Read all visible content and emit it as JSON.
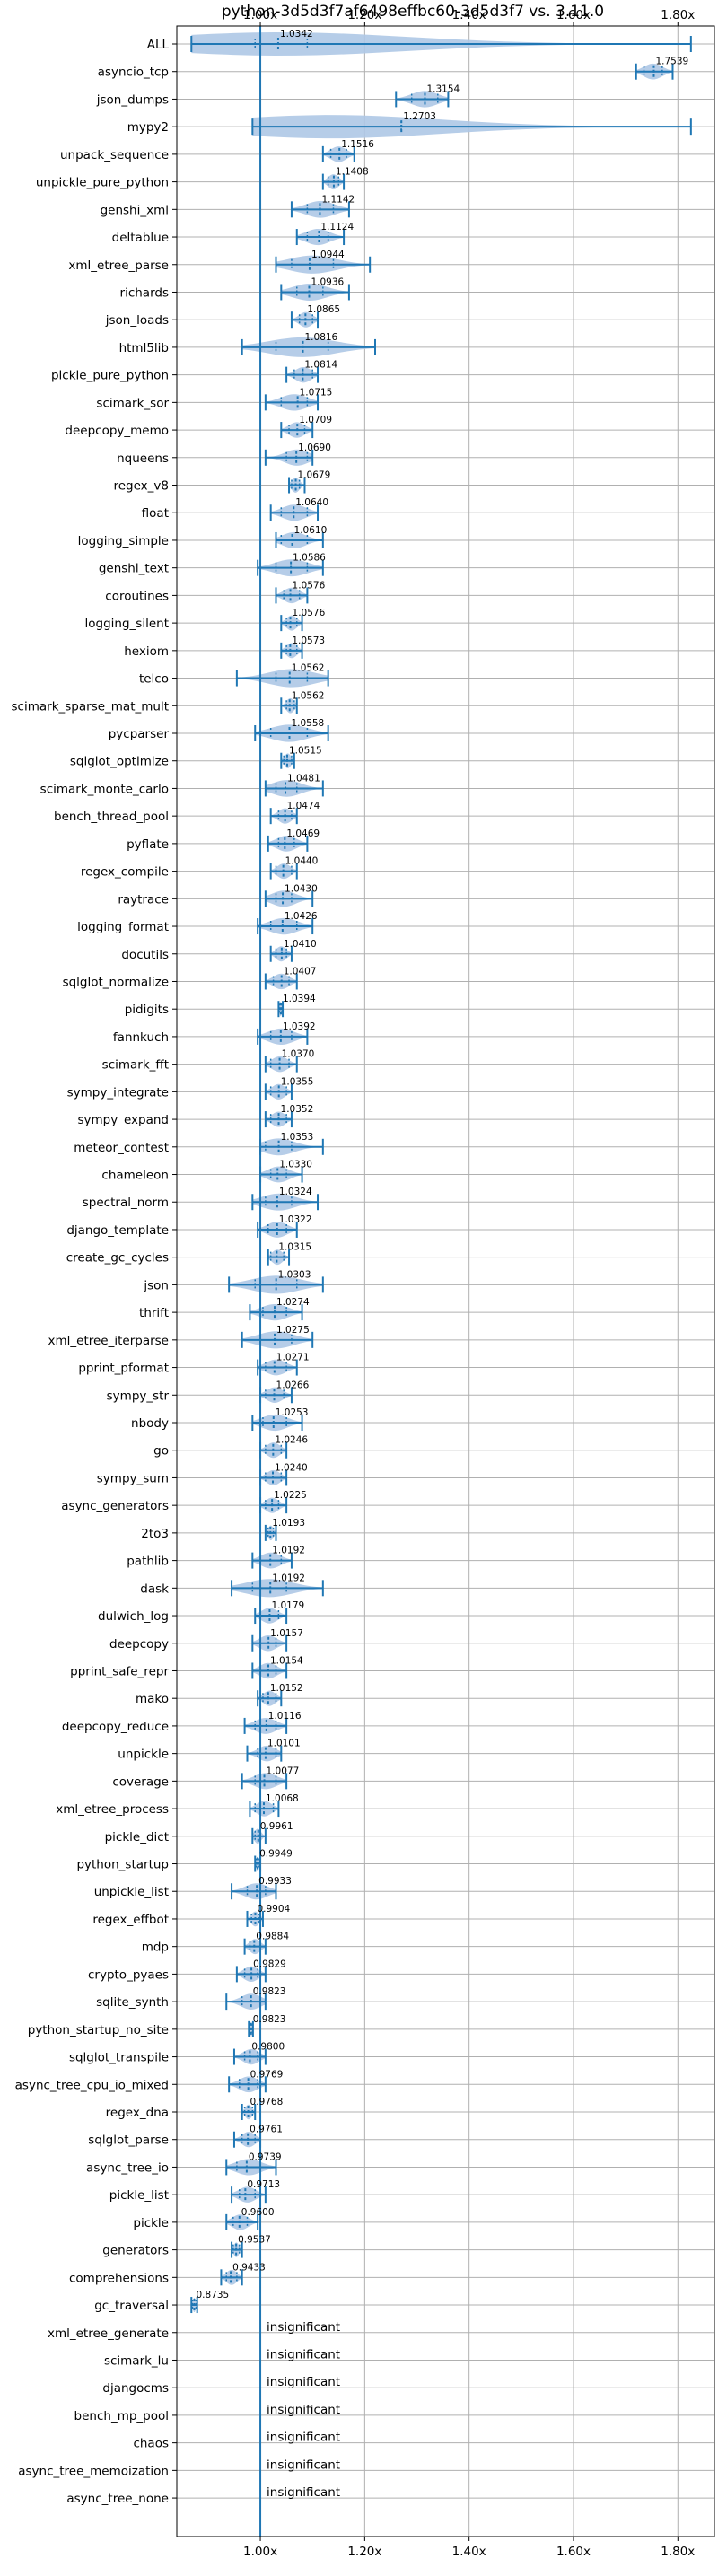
{
  "chart_data": {
    "type": "violin",
    "title": "python-3d5d3f7af6498effbc60-3d5d3f7 vs. 3.11.0",
    "xlabel": "",
    "ylabel": "",
    "xlim": [
      0.84,
      1.87
    ],
    "xticks": [
      1.0,
      1.2,
      1.4,
      1.6,
      1.8
    ],
    "xtick_labels": [
      "1.00x",
      "1.20x",
      "1.40x",
      "1.60x",
      "1.80x"
    ],
    "grid": true,
    "reference_line": 1.0,
    "insignificant_label": "insignificant",
    "colors": {
      "violin": "#aec8e6",
      "stroke": "#1f77b4",
      "grid": "#b0b0b0"
    },
    "benchmarks": [
      {
        "name": "ALL",
        "value": "1.0342",
        "center": 1.0342,
        "min": 0.868,
        "max": 1.825,
        "q1": 0.99,
        "q3": 1.09
      },
      {
        "name": "asyncio_tcp",
        "value": "1.7539",
        "center": 1.7539,
        "min": 1.72,
        "max": 1.79,
        "q1": 1.735,
        "q3": 1.77
      },
      {
        "name": "json_dumps",
        "value": "1.3154",
        "center": 1.3154,
        "min": 1.26,
        "max": 1.36,
        "q1": 1.29,
        "q3": 1.34
      },
      {
        "name": "mypy2",
        "value": "1.2703",
        "center": 1.2703,
        "min": 0.985,
        "max": 1.825,
        "q1": 1.0,
        "q3": 1.27
      },
      {
        "name": "unpack_sequence",
        "value": "1.1516",
        "center": 1.1516,
        "min": 1.12,
        "max": 1.18,
        "q1": 1.135,
        "q3": 1.165
      },
      {
        "name": "unpickle_pure_python",
        "value": "1.1408",
        "center": 1.1408,
        "min": 1.12,
        "max": 1.16,
        "q1": 1.13,
        "q3": 1.15
      },
      {
        "name": "genshi_xml",
        "value": "1.1142",
        "center": 1.1142,
        "min": 1.06,
        "max": 1.17,
        "q1": 1.09,
        "q3": 1.14
      },
      {
        "name": "deltablue",
        "value": "1.1124",
        "center": 1.1124,
        "min": 1.07,
        "max": 1.16,
        "q1": 1.09,
        "q3": 1.13
      },
      {
        "name": "xml_etree_parse",
        "value": "1.0944",
        "center": 1.0944,
        "min": 1.03,
        "max": 1.21,
        "q1": 1.06,
        "q3": 1.14
      },
      {
        "name": "richards",
        "value": "1.0936",
        "center": 1.0936,
        "min": 1.04,
        "max": 1.17,
        "q1": 1.07,
        "q3": 1.12
      },
      {
        "name": "json_loads",
        "value": "1.0865",
        "center": 1.0865,
        "min": 1.06,
        "max": 1.11,
        "q1": 1.075,
        "q3": 1.1
      },
      {
        "name": "html5lib",
        "value": "1.0816",
        "center": 1.0816,
        "min": 0.965,
        "max": 1.22,
        "q1": 1.03,
        "q3": 1.13
      },
      {
        "name": "pickle_pure_python",
        "value": "1.0814",
        "center": 1.0814,
        "min": 1.05,
        "max": 1.11,
        "q1": 1.065,
        "q3": 1.1
      },
      {
        "name": "scimark_sor",
        "value": "1.0715",
        "center": 1.0715,
        "min": 1.01,
        "max": 1.11,
        "q1": 1.04,
        "q3": 1.09
      },
      {
        "name": "deepcopy_memo",
        "value": "1.0709",
        "center": 1.0709,
        "min": 1.04,
        "max": 1.1,
        "q1": 1.055,
        "q3": 1.085
      },
      {
        "name": "nqueens",
        "value": "1.0690",
        "center": 1.069,
        "min": 1.01,
        "max": 1.1,
        "q1": 1.05,
        "q3": 1.09
      },
      {
        "name": "regex_v8",
        "value": "1.0679",
        "center": 1.0679,
        "min": 1.055,
        "max": 1.085,
        "q1": 1.06,
        "q3": 1.075
      },
      {
        "name": "float",
        "value": "1.0640",
        "center": 1.064,
        "min": 1.02,
        "max": 1.11,
        "q1": 1.04,
        "q3": 1.09
      },
      {
        "name": "logging_simple",
        "value": "1.0610",
        "center": 1.061,
        "min": 1.03,
        "max": 1.12,
        "q1": 1.04,
        "q3": 1.09
      },
      {
        "name": "genshi_text",
        "value": "1.0586",
        "center": 1.0586,
        "min": 0.995,
        "max": 1.12,
        "q1": 1.03,
        "q3": 1.09
      },
      {
        "name": "coroutines",
        "value": "1.0576",
        "center": 1.0576,
        "min": 1.03,
        "max": 1.09,
        "q1": 1.045,
        "q3": 1.075
      },
      {
        "name": "logging_silent",
        "value": "1.0576",
        "center": 1.0576,
        "min": 1.04,
        "max": 1.08,
        "q1": 1.05,
        "q3": 1.07
      },
      {
        "name": "hexiom",
        "value": "1.0573",
        "center": 1.0573,
        "min": 1.04,
        "max": 1.08,
        "q1": 1.05,
        "q3": 1.07
      },
      {
        "name": "telco",
        "value": "1.0562",
        "center": 1.0562,
        "min": 0.955,
        "max": 1.13,
        "q1": 1.03,
        "q3": 1.09
      },
      {
        "name": "scimark_sparse_mat_mult",
        "value": "1.0562",
        "center": 1.0562,
        "min": 1.04,
        "max": 1.07,
        "q1": 1.05,
        "q3": 1.065
      },
      {
        "name": "pycparser",
        "value": "1.0558",
        "center": 1.0558,
        "min": 0.99,
        "max": 1.13,
        "q1": 1.02,
        "q3": 1.09
      },
      {
        "name": "sqlglot_optimize",
        "value": "1.0515",
        "center": 1.0515,
        "min": 1.04,
        "max": 1.065,
        "q1": 1.045,
        "q3": 1.06
      },
      {
        "name": "scimark_monte_carlo",
        "value": "1.0481",
        "center": 1.0481,
        "min": 1.01,
        "max": 1.12,
        "q1": 1.03,
        "q3": 1.07
      },
      {
        "name": "bench_thread_pool",
        "value": "1.0474",
        "center": 1.0474,
        "min": 1.02,
        "max": 1.07,
        "q1": 1.035,
        "q3": 1.06
      },
      {
        "name": "pyflate",
        "value": "1.0469",
        "center": 1.0469,
        "min": 1.015,
        "max": 1.09,
        "q1": 1.035,
        "q3": 1.065
      },
      {
        "name": "regex_compile",
        "value": "1.0440",
        "center": 1.044,
        "min": 1.02,
        "max": 1.07,
        "q1": 1.03,
        "q3": 1.06
      },
      {
        "name": "raytrace",
        "value": "1.0430",
        "center": 1.043,
        "min": 1.01,
        "max": 1.1,
        "q1": 1.03,
        "q3": 1.06
      },
      {
        "name": "logging_format",
        "value": "1.0426",
        "center": 1.0426,
        "min": 0.995,
        "max": 1.1,
        "q1": 1.02,
        "q3": 1.07
      },
      {
        "name": "docutils",
        "value": "1.0410",
        "center": 1.041,
        "min": 1.02,
        "max": 1.06,
        "q1": 1.03,
        "q3": 1.05
      },
      {
        "name": "sqlglot_normalize",
        "value": "1.0407",
        "center": 1.0407,
        "min": 1.01,
        "max": 1.07,
        "q1": 1.025,
        "q3": 1.055
      },
      {
        "name": "pidigits",
        "value": "1.0394",
        "center": 1.0394,
        "min": 1.035,
        "max": 1.043,
        "q1": 1.037,
        "q3": 1.041
      },
      {
        "name": "fannkuch",
        "value": "1.0392",
        "center": 1.0392,
        "min": 0.995,
        "max": 1.09,
        "q1": 1.02,
        "q3": 1.06
      },
      {
        "name": "scimark_fft",
        "value": "1.0370",
        "center": 1.037,
        "min": 1.01,
        "max": 1.07,
        "q1": 1.02,
        "q3": 1.055
      },
      {
        "name": "sympy_integrate",
        "value": "1.0355",
        "center": 1.0355,
        "min": 1.01,
        "max": 1.06,
        "q1": 1.02,
        "q3": 1.05
      },
      {
        "name": "sympy_expand",
        "value": "1.0352",
        "center": 1.0352,
        "min": 1.01,
        "max": 1.06,
        "q1": 1.02,
        "q3": 1.05
      },
      {
        "name": "meteor_contest",
        "value": "1.0353",
        "center": 1.0353,
        "min": 1.0,
        "max": 1.12,
        "q1": 1.01,
        "q3": 1.06
      },
      {
        "name": "chameleon",
        "value": "1.0330",
        "center": 1.033,
        "min": 1.0,
        "max": 1.08,
        "q1": 1.02,
        "q3": 1.05
      },
      {
        "name": "spectral_norm",
        "value": "1.0324",
        "center": 1.0324,
        "min": 0.985,
        "max": 1.11,
        "q1": 1.01,
        "q3": 1.06
      },
      {
        "name": "django_template",
        "value": "1.0322",
        "center": 1.0322,
        "min": 0.995,
        "max": 1.07,
        "q1": 1.015,
        "q3": 1.05
      },
      {
        "name": "create_gc_cycles",
        "value": "1.0315",
        "center": 1.0315,
        "min": 1.015,
        "max": 1.055,
        "q1": 1.02,
        "q3": 1.045
      },
      {
        "name": "json",
        "value": "1.0303",
        "center": 1.0303,
        "min": 0.94,
        "max": 1.12,
        "q1": 0.99,
        "q3": 1.07
      },
      {
        "name": "thrift",
        "value": "1.0274",
        "center": 1.0274,
        "min": 0.98,
        "max": 1.08,
        "q1": 1.005,
        "q3": 1.05
      },
      {
        "name": "xml_etree_iterparse",
        "value": "1.0275",
        "center": 1.0275,
        "min": 0.965,
        "max": 1.1,
        "q1": 1.0,
        "q3": 1.06
      },
      {
        "name": "pprint_pformat",
        "value": "1.0271",
        "center": 1.0271,
        "min": 0.995,
        "max": 1.07,
        "q1": 1.01,
        "q3": 1.05
      },
      {
        "name": "sympy_str",
        "value": "1.0266",
        "center": 1.0266,
        "min": 1.0,
        "max": 1.06,
        "q1": 1.01,
        "q3": 1.045
      },
      {
        "name": "nbody",
        "value": "1.0253",
        "center": 1.0253,
        "min": 0.985,
        "max": 1.08,
        "q1": 1.005,
        "q3": 1.05
      },
      {
        "name": "go",
        "value": "1.0246",
        "center": 1.0246,
        "min": 1.0,
        "max": 1.05,
        "q1": 1.01,
        "q3": 1.04
      },
      {
        "name": "sympy_sum",
        "value": "1.0240",
        "center": 1.024,
        "min": 1.0,
        "max": 1.05,
        "q1": 1.01,
        "q3": 1.04
      },
      {
        "name": "async_generators",
        "value": "1.0225",
        "center": 1.0225,
        "min": 1.0,
        "max": 1.05,
        "q1": 1.01,
        "q3": 1.035
      },
      {
        "name": "2to3",
        "value": "1.0193",
        "center": 1.0193,
        "min": 1.01,
        "max": 1.03,
        "q1": 1.015,
        "q3": 1.025
      },
      {
        "name": "pathlib",
        "value": "1.0192",
        "center": 1.0192,
        "min": 0.985,
        "max": 1.06,
        "q1": 1.0,
        "q3": 1.04
      },
      {
        "name": "dask",
        "value": "1.0192",
        "center": 1.0192,
        "min": 0.945,
        "max": 1.12,
        "q1": 0.985,
        "q3": 1.05
      },
      {
        "name": "dulwich_log",
        "value": "1.0179",
        "center": 1.0179,
        "min": 0.99,
        "max": 1.05,
        "q1": 1.0,
        "q3": 1.035
      },
      {
        "name": "deepcopy",
        "value": "1.0157",
        "center": 1.0157,
        "min": 0.985,
        "max": 1.05,
        "q1": 1.0,
        "q3": 1.03
      },
      {
        "name": "pprint_safe_repr",
        "value": "1.0154",
        "center": 1.0154,
        "min": 0.985,
        "max": 1.05,
        "q1": 1.0,
        "q3": 1.03
      },
      {
        "name": "mako",
        "value": "1.0152",
        "center": 1.0152,
        "min": 0.995,
        "max": 1.04,
        "q1": 1.005,
        "q3": 1.03
      },
      {
        "name": "deepcopy_reduce",
        "value": "1.0116",
        "center": 1.0116,
        "min": 0.97,
        "max": 1.05,
        "q1": 0.99,
        "q3": 1.03
      },
      {
        "name": "unpickle",
        "value": "1.0101",
        "center": 1.0101,
        "min": 0.975,
        "max": 1.04,
        "q1": 0.995,
        "q3": 1.03
      },
      {
        "name": "coverage",
        "value": "1.0077",
        "center": 1.0077,
        "min": 0.965,
        "max": 1.05,
        "q1": 0.99,
        "q3": 1.03
      },
      {
        "name": "xml_etree_process",
        "value": "1.0068",
        "center": 1.0068,
        "min": 0.98,
        "max": 1.035,
        "q1": 0.99,
        "q3": 1.025
      },
      {
        "name": "pickle_dict",
        "value": "0.9961",
        "center": 0.9961,
        "min": 0.985,
        "max": 1.01,
        "q1": 0.99,
        "q3": 1.0
      },
      {
        "name": "python_startup",
        "value": "0.9949",
        "center": 0.9949,
        "min": 0.99,
        "max": 1.0,
        "q1": 0.992,
        "q3": 0.998
      },
      {
        "name": "unpickle_list",
        "value": "0.9933",
        "center": 0.9933,
        "min": 0.945,
        "max": 1.03,
        "q1": 0.975,
        "q3": 1.01
      },
      {
        "name": "regex_effbot",
        "value": "0.9904",
        "center": 0.9904,
        "min": 0.975,
        "max": 1.005,
        "q1": 0.983,
        "q3": 0.998
      },
      {
        "name": "mdp",
        "value": "0.9884",
        "center": 0.9884,
        "min": 0.97,
        "max": 1.01,
        "q1": 0.98,
        "q3": 1.0
      },
      {
        "name": "crypto_pyaes",
        "value": "0.9829",
        "center": 0.9829,
        "min": 0.955,
        "max": 1.01,
        "q1": 0.97,
        "q3": 0.995
      },
      {
        "name": "sqlite_synth",
        "value": "0.9823",
        "center": 0.9823,
        "min": 0.935,
        "max": 1.01,
        "q1": 0.965,
        "q3": 1.0
      },
      {
        "name": "python_startup_no_site",
        "value": "0.9823",
        "center": 0.9823,
        "min": 0.978,
        "max": 0.986,
        "q1": 0.98,
        "q3": 0.985
      },
      {
        "name": "sqlglot_transpile",
        "value": "0.9800",
        "center": 0.98,
        "min": 0.95,
        "max": 1.01,
        "q1": 0.97,
        "q3": 0.995
      },
      {
        "name": "async_tree_cpu_io_mixed",
        "value": "0.9769",
        "center": 0.9769,
        "min": 0.94,
        "max": 1.01,
        "q1": 0.96,
        "q3": 0.995
      },
      {
        "name": "regex_dna",
        "value": "0.9768",
        "center": 0.9768,
        "min": 0.965,
        "max": 0.99,
        "q1": 0.97,
        "q3": 0.985
      },
      {
        "name": "sqlglot_parse",
        "value": "0.9761",
        "center": 0.9761,
        "min": 0.95,
        "max": 1.0,
        "q1": 0.965,
        "q3": 0.99
      },
      {
        "name": "async_tree_io",
        "value": "0.9739",
        "center": 0.9739,
        "min": 0.935,
        "max": 1.03,
        "q1": 0.955,
        "q3": 1.0
      },
      {
        "name": "pickle_list",
        "value": "0.9713",
        "center": 0.9713,
        "min": 0.945,
        "max": 1.01,
        "q1": 0.96,
        "q3": 0.99
      },
      {
        "name": "pickle",
        "value": "0.9600",
        "center": 0.96,
        "min": 0.935,
        "max": 0.995,
        "q1": 0.948,
        "q3": 0.975
      },
      {
        "name": "generators",
        "value": "0.9537",
        "center": 0.9537,
        "min": 0.945,
        "max": 0.965,
        "q1": 0.948,
        "q3": 0.96
      },
      {
        "name": "comprehensions",
        "value": "0.9433",
        "center": 0.9433,
        "min": 0.925,
        "max": 0.965,
        "q1": 0.935,
        "q3": 0.955
      },
      {
        "name": "gc_traversal",
        "value": "0.8735",
        "center": 0.8735,
        "min": 0.868,
        "max": 0.879,
        "q1": 0.87,
        "q3": 0.877
      },
      {
        "name": "xml_etree_generate",
        "value": null
      },
      {
        "name": "scimark_lu",
        "value": null
      },
      {
        "name": "djangocms",
        "value": null
      },
      {
        "name": "bench_mp_pool",
        "value": null
      },
      {
        "name": "chaos",
        "value": null
      },
      {
        "name": "async_tree_memoization",
        "value": null
      },
      {
        "name": "async_tree_none",
        "value": null
      }
    ]
  }
}
